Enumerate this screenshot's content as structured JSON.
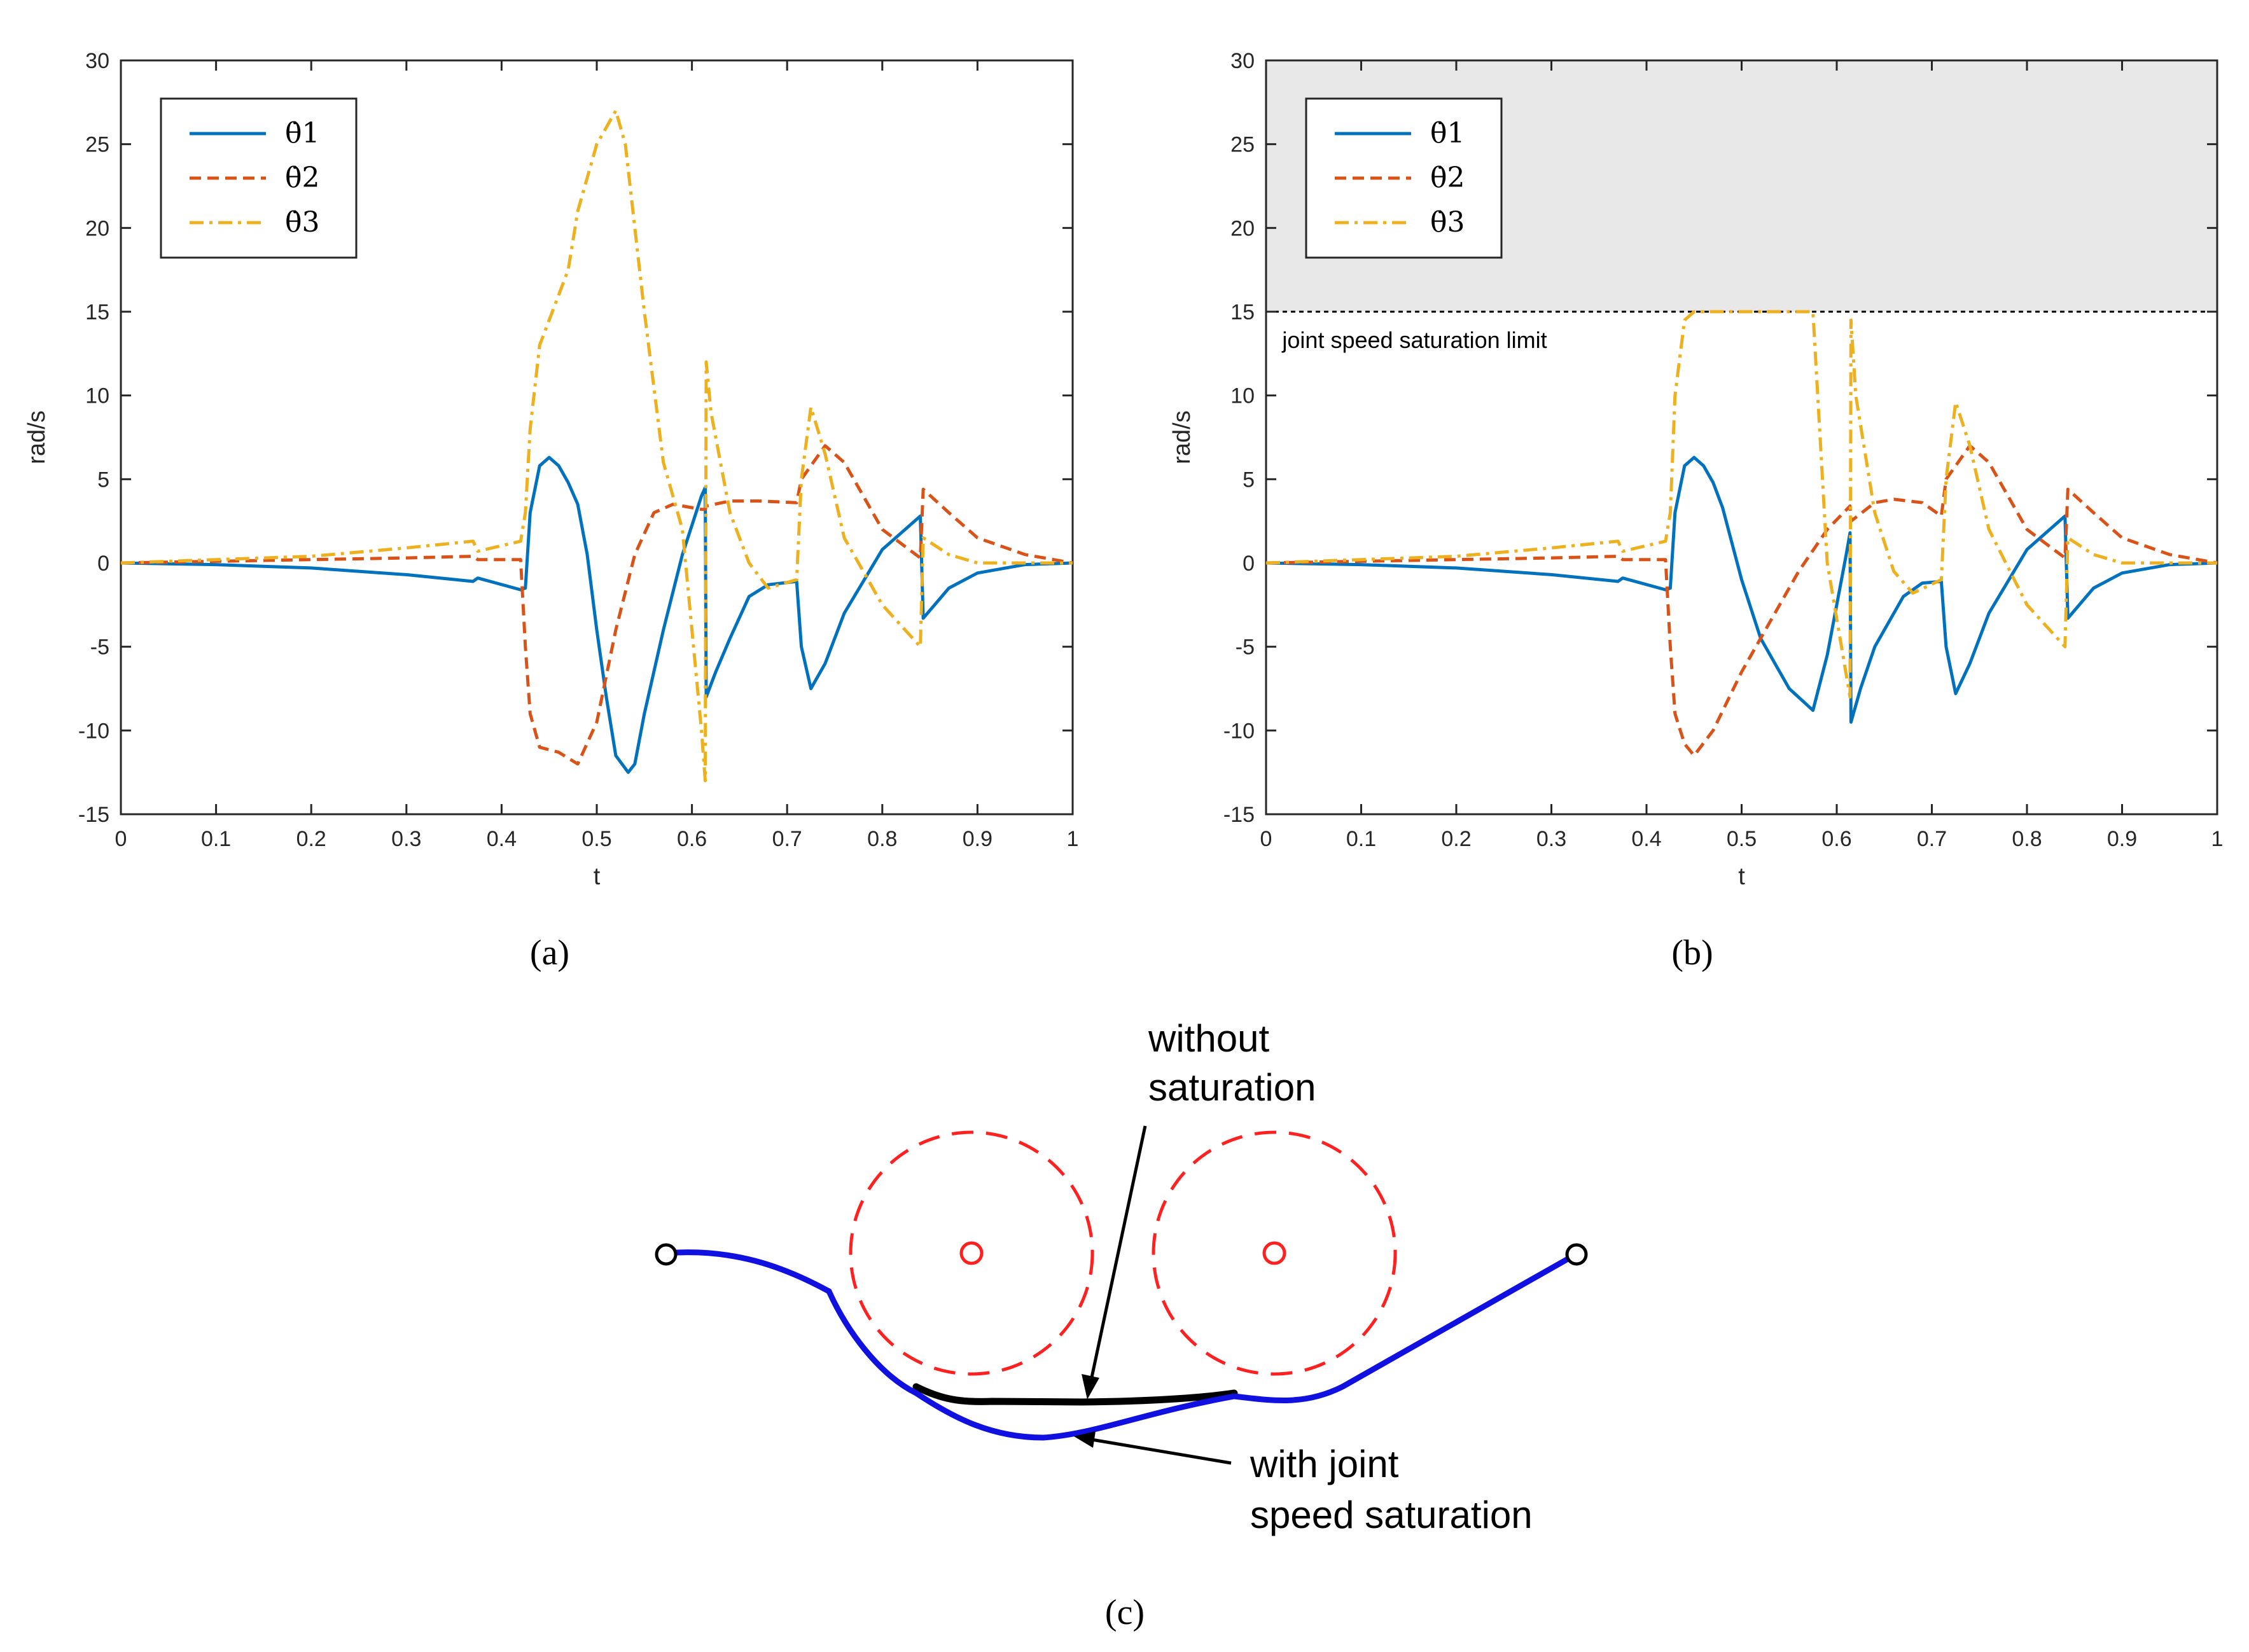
{
  "colors": {
    "theta1": "#0072BD",
    "theta2": "#D95319",
    "theta3": "#EDB120",
    "saturation_region": "#E8E8E8",
    "obstacle": "#FF2020",
    "path_with_saturation": "#1010E0",
    "path_without_saturation": "#000000"
  },
  "chart_data": [
    {
      "type": "line",
      "panel_label": "(a)",
      "xlabel": "t",
      "ylabel": "rad/s",
      "xlim": [
        0,
        1
      ],
      "ylim": [
        -15,
        30
      ],
      "xticks": [
        "0",
        "0.1",
        "0.2",
        "0.3",
        "0.4",
        "0.5",
        "0.6",
        "0.7",
        "0.8",
        "0.9",
        "1"
      ],
      "yticks": [
        "-15",
        "-10",
        "-5",
        "0",
        "5",
        "10",
        "15",
        "20",
        "25",
        "30"
      ],
      "legend_position": "top-left",
      "legend": [
        "θ̇1",
        "θ̇2",
        "θ̇3"
      ],
      "series": [
        {
          "name": "theta1_dot",
          "style": "solid",
          "points": [
            [
              0,
              0
            ],
            [
              0.1,
              -0.1
            ],
            [
              0.2,
              -0.3
            ],
            [
              0.3,
              -0.7
            ],
            [
              0.37,
              -1.1
            ],
            [
              0.375,
              -0.9
            ],
            [
              0.42,
              -1.6
            ],
            [
              0.425,
              -1.5
            ],
            [
              0.43,
              3
            ],
            [
              0.44,
              5.8
            ],
            [
              0.45,
              6.3
            ],
            [
              0.46,
              5.8
            ],
            [
              0.47,
              4.8
            ],
            [
              0.48,
              3.5
            ],
            [
              0.49,
              0.5
            ],
            [
              0.5,
              -4
            ],
            [
              0.51,
              -8
            ],
            [
              0.52,
              -11.5
            ],
            [
              0.533,
              -12.5
            ],
            [
              0.54,
              -12
            ],
            [
              0.55,
              -9
            ],
            [
              0.57,
              -4
            ],
            [
              0.59,
              0.5
            ],
            [
              0.61,
              4
            ],
            [
              0.614,
              4.5
            ],
            [
              0.615,
              -8
            ],
            [
              0.625,
              -6.5
            ],
            [
              0.64,
              -4.5
            ],
            [
              0.66,
              -2
            ],
            [
              0.68,
              -1.3
            ],
            [
              0.71,
              -1.1
            ],
            [
              0.715,
              -5
            ],
            [
              0.725,
              -7.5
            ],
            [
              0.74,
              -6
            ],
            [
              0.76,
              -3
            ],
            [
              0.8,
              0.8
            ],
            [
              0.84,
              2.8
            ],
            [
              0.843,
              -3.3
            ],
            [
              0.87,
              -1.5
            ],
            [
              0.9,
              -0.6
            ],
            [
              0.95,
              -0.1
            ],
            [
              1,
              0
            ]
          ]
        },
        {
          "name": "theta2_dot",
          "style": "dashed",
          "points": [
            [
              0,
              0
            ],
            [
              0.1,
              0.1
            ],
            [
              0.2,
              0.2
            ],
            [
              0.3,
              0.3
            ],
            [
              0.37,
              0.4
            ],
            [
              0.375,
              0.2
            ],
            [
              0.42,
              0.2
            ],
            [
              0.425,
              -5
            ],
            [
              0.43,
              -9
            ],
            [
              0.44,
              -11
            ],
            [
              0.46,
              -11.3
            ],
            [
              0.48,
              -12
            ],
            [
              0.5,
              -9.5
            ],
            [
              0.52,
              -4
            ],
            [
              0.54,
              0.5
            ],
            [
              0.56,
              3
            ],
            [
              0.58,
              3.5
            ],
            [
              0.61,
              3.2
            ],
            [
              0.614,
              3.2
            ],
            [
              0.615,
              3.4
            ],
            [
              0.64,
              3.7
            ],
            [
              0.67,
              3.7
            ],
            [
              0.71,
              3.6
            ],
            [
              0.715,
              5
            ],
            [
              0.74,
              7
            ],
            [
              0.76,
              6
            ],
            [
              0.8,
              2
            ],
            [
              0.84,
              0.3
            ],
            [
              0.843,
              4.4
            ],
            [
              0.87,
              3
            ],
            [
              0.9,
              1.5
            ],
            [
              0.95,
              0.5
            ],
            [
              1,
              0
            ]
          ]
        },
        {
          "name": "theta3_dot",
          "style": "dashdot",
          "points": [
            [
              0,
              0
            ],
            [
              0.1,
              0.2
            ],
            [
              0.2,
              0.4
            ],
            [
              0.3,
              0.9
            ],
            [
              0.37,
              1.3
            ],
            [
              0.375,
              0.7
            ],
            [
              0.42,
              1.3
            ],
            [
              0.425,
              3
            ],
            [
              0.43,
              8
            ],
            [
              0.44,
              13
            ],
            [
              0.46,
              16
            ],
            [
              0.47,
              17.5
            ],
            [
              0.48,
              21
            ],
            [
              0.5,
              25
            ],
            [
              0.52,
              27
            ],
            [
              0.53,
              25
            ],
            [
              0.55,
              15
            ],
            [
              0.57,
              6
            ],
            [
              0.59,
              2
            ],
            [
              0.61,
              -10
            ],
            [
              0.614,
              -13
            ],
            [
              0.615,
              12
            ],
            [
              0.62,
              9
            ],
            [
              0.64,
              3
            ],
            [
              0.66,
              0
            ],
            [
              0.68,
              -1.5
            ],
            [
              0.71,
              -1
            ],
            [
              0.715,
              5
            ],
            [
              0.725,
              9.3
            ],
            [
              0.74,
              6.5
            ],
            [
              0.76,
              1.5
            ],
            [
              0.8,
              -2.5
            ],
            [
              0.84,
              -5
            ],
            [
              0.843,
              1.5
            ],
            [
              0.87,
              0.5
            ],
            [
              0.9,
              0
            ],
            [
              0.95,
              0
            ],
            [
              1,
              0
            ]
          ]
        }
      ]
    },
    {
      "type": "line",
      "panel_label": "(b)",
      "xlabel": "t",
      "ylabel": "rad/s",
      "xlim": [
        0,
        1
      ],
      "ylim": [
        -15,
        30
      ],
      "xticks": [
        "0",
        "0.1",
        "0.2",
        "0.3",
        "0.4",
        "0.5",
        "0.6",
        "0.7",
        "0.8",
        "0.9",
        "1"
      ],
      "yticks": [
        "-15",
        "-10",
        "-5",
        "0",
        "5",
        "10",
        "15",
        "20",
        "25",
        "30"
      ],
      "legend_position": "top-left",
      "legend": [
        "θ̇1",
        "θ̇2",
        "θ̇3"
      ],
      "saturation_limit": 15,
      "saturation_label": "joint speed saturation limit",
      "series": [
        {
          "name": "theta1_dot",
          "style": "solid",
          "points": [
            [
              0,
              0
            ],
            [
              0.1,
              -0.1
            ],
            [
              0.2,
              -0.3
            ],
            [
              0.3,
              -0.7
            ],
            [
              0.37,
              -1.1
            ],
            [
              0.375,
              -0.9
            ],
            [
              0.42,
              -1.6
            ],
            [
              0.425,
              -1.5
            ],
            [
              0.43,
              3
            ],
            [
              0.44,
              5.8
            ],
            [
              0.45,
              6.3
            ],
            [
              0.46,
              5.8
            ],
            [
              0.47,
              4.8
            ],
            [
              0.48,
              3.3
            ],
            [
              0.5,
              -1
            ],
            [
              0.52,
              -4.5
            ],
            [
              0.55,
              -7.5
            ],
            [
              0.575,
              -8.8
            ],
            [
              0.59,
              -5.5
            ],
            [
              0.61,
              0.5
            ],
            [
              0.614,
              1.8
            ],
            [
              0.615,
              -9.5
            ],
            [
              0.625,
              -7.5
            ],
            [
              0.64,
              -5
            ],
            [
              0.67,
              -2
            ],
            [
              0.69,
              -1.2
            ],
            [
              0.71,
              -1.1
            ],
            [
              0.715,
              -5
            ],
            [
              0.725,
              -7.8
            ],
            [
              0.74,
              -6
            ],
            [
              0.76,
              -3
            ],
            [
              0.8,
              0.8
            ],
            [
              0.84,
              2.8
            ],
            [
              0.843,
              -3.3
            ],
            [
              0.87,
              -1.5
            ],
            [
              0.9,
              -0.6
            ],
            [
              0.95,
              -0.1
            ],
            [
              1,
              0
            ]
          ]
        },
        {
          "name": "theta2_dot",
          "style": "dashed",
          "points": [
            [
              0,
              0
            ],
            [
              0.1,
              0.1
            ],
            [
              0.2,
              0.2
            ],
            [
              0.3,
              0.3
            ],
            [
              0.37,
              0.4
            ],
            [
              0.375,
              0.2
            ],
            [
              0.42,
              0.2
            ],
            [
              0.425,
              -5
            ],
            [
              0.43,
              -9
            ],
            [
              0.44,
              -10.8
            ],
            [
              0.45,
              -11.5
            ],
            [
              0.47,
              -10
            ],
            [
              0.5,
              -6.5
            ],
            [
              0.53,
              -3.5
            ],
            [
              0.56,
              -0.5
            ],
            [
              0.59,
              2
            ],
            [
              0.614,
              3.4
            ],
            [
              0.615,
              2.5
            ],
            [
              0.64,
              3.6
            ],
            [
              0.66,
              3.8
            ],
            [
              0.69,
              3.6
            ],
            [
              0.71,
              2.8
            ],
            [
              0.715,
              5
            ],
            [
              0.74,
              7
            ],
            [
              0.76,
              6
            ],
            [
              0.8,
              2
            ],
            [
              0.84,
              0.3
            ],
            [
              0.843,
              4.4
            ],
            [
              0.87,
              3
            ],
            [
              0.9,
              1.5
            ],
            [
              0.95,
              0.5
            ],
            [
              1,
              0
            ]
          ]
        },
        {
          "name": "theta3_dot",
          "style": "dashdot",
          "points": [
            [
              0,
              0
            ],
            [
              0.1,
              0.2
            ],
            [
              0.2,
              0.4
            ],
            [
              0.3,
              0.9
            ],
            [
              0.37,
              1.3
            ],
            [
              0.375,
              0.7
            ],
            [
              0.42,
              1.3
            ],
            [
              0.425,
              3
            ],
            [
              0.43,
              10
            ],
            [
              0.44,
              14.5
            ],
            [
              0.45,
              15
            ],
            [
              0.57,
              15
            ],
            [
              0.575,
              15
            ],
            [
              0.59,
              0
            ],
            [
              0.605,
              -5
            ],
            [
              0.614,
              -8
            ],
            [
              0.615,
              14.5
            ],
            [
              0.62,
              10
            ],
            [
              0.64,
              3
            ],
            [
              0.66,
              -0.5
            ],
            [
              0.68,
              -1.8
            ],
            [
              0.71,
              -1
            ],
            [
              0.715,
              5
            ],
            [
              0.725,
              9.6
            ],
            [
              0.74,
              7
            ],
            [
              0.76,
              2
            ],
            [
              0.8,
              -2.5
            ],
            [
              0.84,
              -5
            ],
            [
              0.843,
              1.5
            ],
            [
              0.87,
              0.5
            ],
            [
              0.9,
              0
            ],
            [
              0.95,
              0
            ],
            [
              1,
              0
            ]
          ]
        }
      ]
    }
  ],
  "panel_c": {
    "caption": "(c)",
    "label_without": [
      "without",
      "saturation"
    ],
    "label_with": [
      "with joint",
      "speed saturation"
    ]
  }
}
